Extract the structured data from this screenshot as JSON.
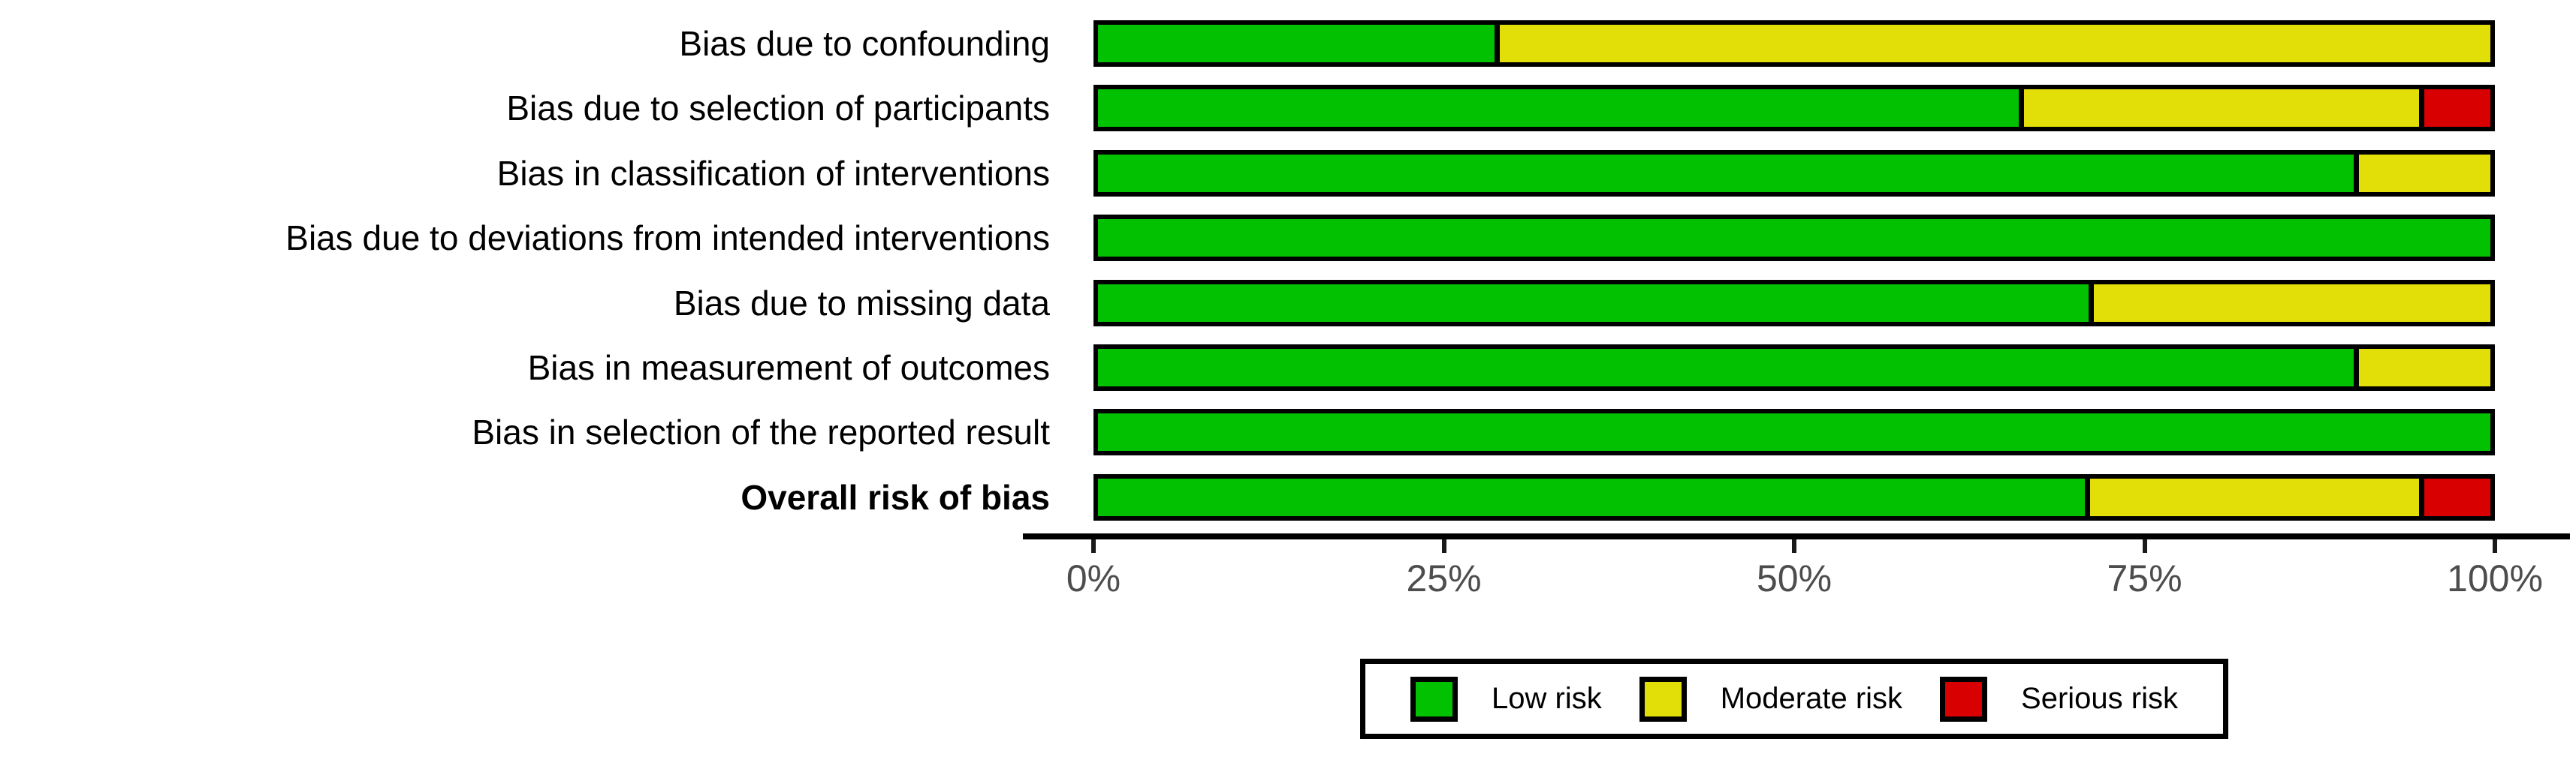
{
  "chart_data": {
    "type": "bar",
    "orientation": "horizontal-stacked",
    "title": "",
    "xlabel": "",
    "ylabel": "",
    "x_range": [
      0,
      100
    ],
    "grid": false,
    "legend_position": "bottom-center-boxed",
    "categories": [
      "Bias due to confounding",
      "Bias due to selection of participants",
      "Bias in classification of interventions",
      "Bias due to deviations from intended interventions",
      "Bias due to missing data",
      "Bias in measurement of outcomes",
      "Bias in selection of the reported result",
      "Overall risk of bias"
    ],
    "bold_categories": [
      "Overall risk of bias"
    ],
    "series": [
      {
        "name": "Low risk",
        "color": "#02C100",
        "values": [
          28.6,
          66.7,
          90.5,
          100,
          71.4,
          90.5,
          100,
          71.4
        ]
      },
      {
        "name": "Moderate risk",
        "color": "#E2DE07",
        "values": [
          71.4,
          28.6,
          9.5,
          0,
          28.6,
          9.5,
          0,
          23.8
        ]
      },
      {
        "name": "Serious risk",
        "color": "#D80000",
        "values": [
          0,
          4.8,
          0,
          0,
          0,
          0,
          0,
          4.8
        ]
      }
    ],
    "x_ticks": [
      {
        "label": "0%",
        "value": 0
      },
      {
        "label": "25%",
        "value": 25
      },
      {
        "label": "50%",
        "value": 50
      },
      {
        "label": "75%",
        "value": 75
      },
      {
        "label": "100%",
        "value": 100
      }
    ],
    "colors": {
      "low_risk": "#02C100",
      "moderate_risk": "#E2DE07",
      "serious_risk": "#D80000",
      "axis": "#000000",
      "tick_label": "#4D4D4D",
      "bar_border": "#000000"
    }
  }
}
